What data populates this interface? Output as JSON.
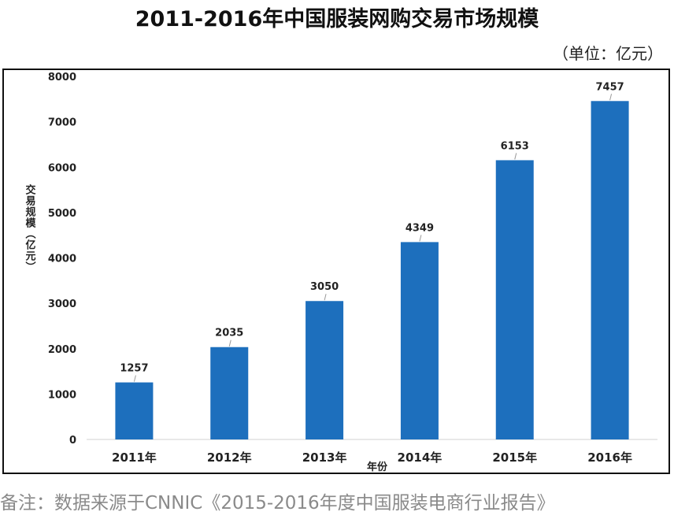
{
  "header": {
    "title": "2011-2016年中国服装网购交易市场规模",
    "unit": "（单位：亿元）"
  },
  "footer": {
    "source": "备注：数据来源于CNNIC《2015-2016年度中国服装电商行业报告》"
  },
  "chart_data": {
    "type": "bar",
    "categories": [
      "2011年",
      "2012年",
      "2013年",
      "2014年",
      "2015年",
      "2016年"
    ],
    "values": [
      1257,
      2035,
      3050,
      4349,
      6153,
      7457
    ],
    "data_labels": [
      "1257",
      "2035",
      "3050",
      "4349",
      "6153",
      "7457"
    ],
    "ylabel": "交易规模（亿元）",
    "xlabel": "年份",
    "ylim": [
      0,
      8000
    ],
    "yticks": [
      0,
      1000,
      2000,
      3000,
      4000,
      5000,
      6000,
      7000,
      8000
    ],
    "grid": false,
    "bar_color": "#1d6fbd"
  }
}
